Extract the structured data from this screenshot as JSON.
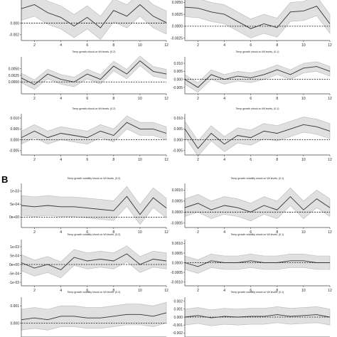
{
  "figure": {
    "section_b_label": "B",
    "band_color": "#e0e0e0",
    "band_edge_color": "#b8b8b8",
    "line_color": "#333333",
    "zero_line_color": "#111111"
  },
  "chart_data": [
    {
      "type": "line",
      "id": "p1",
      "title": "",
      "x": [
        1,
        2,
        3,
        4,
        5,
        6,
        7,
        8,
        9,
        10,
        11,
        12
      ],
      "x_ticks": [
        2,
        4,
        6,
        8,
        10,
        12
      ],
      "ylim": [
        -0.003,
        0.004
      ],
      "y_ticks": [
        -0.002,
        0.0
      ],
      "y_tick_labels": [
        "-0.002",
        "0.000"
      ],
      "series": [
        {
          "values": [
            0.0025,
            0.0032,
            0.0018,
            0.001,
            -0.0005,
            0.001,
            -0.0008,
            0.0022,
            0.0012,
            0.0032,
            0.0012,
            0.0001
          ]
        }
      ],
      "band_width": [
        0.002,
        0.002,
        0.002,
        0.002,
        0.002,
        0.002,
        0.002,
        0.002,
        0.002,
        0.002,
        0.002,
        0.002
      ]
    },
    {
      "type": "line",
      "id": "p2",
      "title": "",
      "x": [
        1,
        2,
        3,
        4,
        5,
        6,
        7,
        8,
        9,
        10,
        11,
        12
      ],
      "x_ticks": [
        2,
        4,
        6,
        8,
        10,
        12
      ],
      "ylim": [
        -0.003,
        0.0055
      ],
      "y_ticks": [
        -0.0025,
        0.0,
        0.0025,
        0.005
      ],
      "y_tick_labels": [
        "-0.0025",
        "0.0000",
        "0.0025",
        "0.0050"
      ],
      "series": [
        {
          "values": [
            0.004,
            0.0038,
            0.003,
            0.0025,
            0.001,
            -0.0005,
            0.0005,
            -0.0003,
            0.003,
            0.0032,
            0.0042,
            0.0005
          ]
        }
      ],
      "band_width": [
        0.002,
        0.002,
        0.002,
        0.002,
        0.002,
        0.002,
        0.002,
        0.002,
        0.002,
        0.002,
        0.002,
        0.002
      ]
    },
    {
      "type": "line",
      "id": "p3",
      "title": "Temp growth shock on Wt levels, (0.2)",
      "x": [
        1,
        2,
        3,
        4,
        5,
        6,
        7,
        8,
        9,
        10,
        11,
        12
      ],
      "x_ticks": [
        2,
        4,
        6,
        8,
        10,
        12
      ],
      "ylim": [
        -0.0045,
        0.0095
      ],
      "y_ticks": [
        0.005,
        0.0025,
        0.0
      ],
      "y_tick_labels": [
        "0.0050",
        "0.0025",
        "0.0000"
      ],
      "series": [
        {
          "values": [
            0.0015,
            -0.001,
            0.003,
            0.001,
            0.0,
            0.003,
            0.001,
            0.006,
            0.003,
            0.008,
            0.004,
            0.003
          ]
        }
      ],
      "band_width": [
        0.0018,
        0.0018,
        0.0018,
        0.0018,
        0.0018,
        0.0018,
        0.0018,
        0.0018,
        0.0018,
        0.0018,
        0.0018,
        0.0018
      ]
    },
    {
      "type": "line",
      "id": "p4",
      "title": "Temp growth shock on Wt levels, (0.1)",
      "x": [
        1,
        2,
        3,
        4,
        5,
        6,
        7,
        8,
        9,
        10,
        11,
        12
      ],
      "x_ticks": [
        2,
        4,
        6,
        8,
        10,
        12
      ],
      "ylim": [
        -0.009,
        0.014
      ],
      "y_ticks": [
        0.01,
        0.005,
        0.0,
        -0.005
      ],
      "y_tick_labels": [
        "0.010",
        "0.005",
        "0.000",
        "-0.005"
      ],
      "series": [
        {
          "values": [
            0.0,
            -0.005,
            0.003,
            0.0,
            0.002,
            0.001,
            0.003,
            0.006,
            0.003,
            0.007,
            0.008,
            0.005
          ]
        }
      ],
      "band_width": [
        0.003,
        0.003,
        0.003,
        0.003,
        0.003,
        0.003,
        0.003,
        0.003,
        0.003,
        0.003,
        0.003,
        0.003
      ]
    },
    {
      "type": "line",
      "id": "p5",
      "title": "Temp growth shock on Wt levels, (0.2)",
      "x": [
        1,
        2,
        3,
        4,
        5,
        6,
        7,
        8,
        9,
        10,
        11,
        12
      ],
      "x_ticks": [
        2,
        4,
        6,
        8,
        10,
        12
      ],
      "ylim": [
        -0.007,
        0.012
      ],
      "y_ticks": [
        0.01,
        0.005,
        0.0,
        -0.005
      ],
      "y_tick_labels": [
        "0.010",
        "0.005",
        "0.000",
        "-0.005"
      ],
      "series": [
        {
          "values": [
            0.001,
            0.004,
            0.001,
            0.003,
            0.002,
            0.001,
            0.004,
            0.002,
            0.008,
            0.005,
            0.005,
            0.003
          ]
        }
      ],
      "band_width": [
        0.003,
        0.003,
        0.003,
        0.003,
        0.003,
        0.003,
        0.003,
        0.003,
        0.003,
        0.003,
        0.003,
        0.003
      ]
    },
    {
      "type": "line",
      "id": "p6",
      "title": "Temp growth shock on Wt levels, (0.1)",
      "x": [
        1,
        2,
        3,
        4,
        5,
        6,
        7,
        8,
        9,
        10,
        11,
        12
      ],
      "x_ticks": [
        2,
        4,
        6,
        8,
        10,
        12
      ],
      "ylim": [
        -0.007,
        0.012
      ],
      "y_ticks": [
        0.01,
        0.005,
        0.0,
        -0.005
      ],
      "y_tick_labels": [
        "0.010",
        "0.005",
        "0.000",
        "-0.005"
      ],
      "series": [
        {
          "values": [
            0.005,
            -0.004,
            0.003,
            -0.002,
            0.002,
            0.001,
            0.004,
            0.003,
            0.005,
            0.007,
            0.006,
            0.004
          ]
        }
      ],
      "band_width": [
        0.0035,
        0.0035,
        0.0035,
        0.0035,
        0.0035,
        0.0035,
        0.0035,
        0.0035,
        0.0035,
        0.0035,
        0.0035,
        0.0035
      ]
    },
    {
      "type": "line",
      "id": "p7",
      "title": "Temp growth volatility shock on Wt levels, (0.2)",
      "x": [
        1,
        2,
        3,
        4,
        5,
        6,
        7,
        8,
        9,
        10,
        11,
        12
      ],
      "x_ticks": [
        2,
        4,
        6,
        8,
        10,
        12
      ],
      "ylim": [
        -0.0004,
        0.0013
      ],
      "y_ticks": [
        0.001,
        0.0005,
        0.0
      ],
      "y_tick_labels": [
        "1e-03",
        "5e-04",
        "0e+00"
      ],
      "series": [
        {
          "values": [
            0.00045,
            0.0004,
            0.00045,
            0.0004,
            0.0004,
            0.00035,
            0.0003,
            0.00025,
            0.0008,
            0.0001,
            0.00075,
            0.00035
          ]
        }
      ],
      "band_width": [
        0.00038,
        0.00038,
        0.00038,
        0.00038,
        0.00038,
        0.00038,
        0.00038,
        0.00038,
        0.00038,
        0.00038,
        0.00038,
        0.00038
      ]
    },
    {
      "type": "line",
      "id": "p8",
      "title": "Temp growth volatility shock on Wt levels, (0.1)",
      "x": [
        1,
        2,
        3,
        4,
        5,
        6,
        7,
        8,
        9,
        10,
        11,
        12
      ],
      "x_ticks": [
        2,
        4,
        6,
        8,
        10,
        12
      ],
      "ylim": [
        -0.0007,
        0.0013
      ],
      "y_ticks": [
        0.001,
        0.0005,
        0.0,
        -0.0005
      ],
      "y_tick_labels": [
        "0.0010",
        "0.0005",
        "0.0000",
        "-0.0005"
      ],
      "series": [
        {
          "values": [
            0.0002,
            0.0004,
            0.0001,
            0.0003,
            0.0002,
            0.0,
            0.0003,
            0.0001,
            0.0007,
            0.0001,
            0.0006,
            0.0002
          ]
        }
      ],
      "band_width": [
        0.0004,
        0.0004,
        0.0004,
        0.0004,
        0.0004,
        0.0004,
        0.0004,
        0.0004,
        0.0004,
        0.0004,
        0.0004,
        0.0004
      ]
    },
    {
      "type": "line",
      "id": "p9",
      "title": "Temp growth volatility shock on Wt levels, (0.2)",
      "x": [
        1,
        2,
        3,
        4,
        5,
        6,
        7,
        8,
        9,
        10,
        11,
        12
      ],
      "x_ticks": [
        2,
        4,
        6,
        8,
        10,
        12
      ],
      "ylim": [
        -0.0012,
        0.0014
      ],
      "y_ticks": [
        0.001,
        0.0005,
        0.0,
        -0.0005,
        -0.001
      ],
      "y_tick_labels": [
        "1e-03",
        "5e-04",
        "0e+00",
        "-5e-04",
        "-1e-03"
      ],
      "series": [
        {
          "values": [
            0.0001,
            -0.0002,
            0.0,
            -0.0003,
            0.0004,
            0.0002,
            0.0003,
            0.0002,
            0.0006,
            0.0,
            0.0003,
            0.0002
          ]
        }
      ],
      "band_width": [
        0.00045,
        0.00045,
        0.00045,
        0.00045,
        0.00045,
        0.00045,
        0.00045,
        0.00045,
        0.00045,
        0.00045,
        0.00045,
        0.00045
      ]
    },
    {
      "type": "line",
      "id": "p10",
      "title": "Temp growth volatility shock on Wt levels, (0.1)",
      "x": [
        1,
        2,
        3,
        4,
        5,
        6,
        7,
        8,
        9,
        10,
        11,
        12
      ],
      "x_ticks": [
        2,
        4,
        6,
        8,
        10,
        12
      ],
      "ylim": [
        -0.0012,
        0.0012
      ],
      "y_ticks": [
        0.001,
        0.0005,
        0.0,
        -0.0005,
        -0.001
      ],
      "y_tick_labels": [
        "0.0010",
        "0.0005",
        "0.0000",
        "-0.0005",
        "-0.0010"
      ],
      "series": [
        {
          "values": [
            0.0,
            -0.0002,
            0.0001,
            0.0,
            0.0,
            0.0001,
            0.0,
            0.0,
            0.0001,
            0.0001,
            0.0,
            0.0
          ]
        }
      ],
      "band_width": [
        0.00035,
        0.00035,
        0.00035,
        0.00035,
        0.00035,
        0.00035,
        0.00035,
        0.00035,
        0.00035,
        0.00035,
        0.00035,
        0.00035
      ]
    },
    {
      "type": "line",
      "id": "p11",
      "title": "Temp growth volatility shock on Wt levels, (0.2)",
      "x": [
        1,
        2,
        3,
        4,
        5,
        6,
        7,
        8,
        9,
        10,
        11,
        12
      ],
      "x_ticks": [
        2,
        4,
        6,
        8,
        10,
        12
      ],
      "ylim": [
        -0.0008,
        0.0015
      ],
      "y_ticks": [
        0.001,
        0.0
      ],
      "y_tick_labels": [
        "0.001",
        "0.000"
      ],
      "series": [
        {
          "values": [
            0.0002,
            0.0003,
            0.0002,
            0.0004,
            0.0004,
            0.0003,
            0.0003,
            0.0004,
            0.0005,
            0.0005,
            0.0004,
            0.0006
          ]
        }
      ],
      "band_width": [
        0.0006,
        0.0006,
        0.0006,
        0.0006,
        0.0006,
        0.0006,
        0.0006,
        0.0006,
        0.0006,
        0.0006,
        0.0006,
        0.0006
      ]
    },
    {
      "type": "line",
      "id": "p12",
      "title": "Temp growth volatility shock on Wt levels, (0.1)",
      "x": [
        1,
        2,
        3,
        4,
        5,
        6,
        7,
        8,
        9,
        10,
        11,
        12
      ],
      "x_ticks": [
        2,
        4,
        6,
        8,
        10,
        12
      ],
      "ylim": [
        -0.0025,
        0.0025
      ],
      "y_ticks": [
        0.002,
        0.001,
        0.0,
        -0.001,
        -0.002
      ],
      "y_tick_labels": [
        "0.002",
        "0.001",
        "0.000",
        "-0.001",
        "-0.002"
      ],
      "series": [
        {
          "values": [
            0.0,
            0.0002,
            -0.0001,
            0.0001,
            0.0,
            0.0001,
            0.0001,
            0.0003,
            0.0001,
            0.0002,
            0.0003,
            0.0
          ]
        }
      ],
      "band_width": [
        0.001,
        0.001,
        0.001,
        0.001,
        0.001,
        0.001,
        0.001,
        0.001,
        0.001,
        0.001,
        0.001,
        0.001
      ]
    }
  ]
}
